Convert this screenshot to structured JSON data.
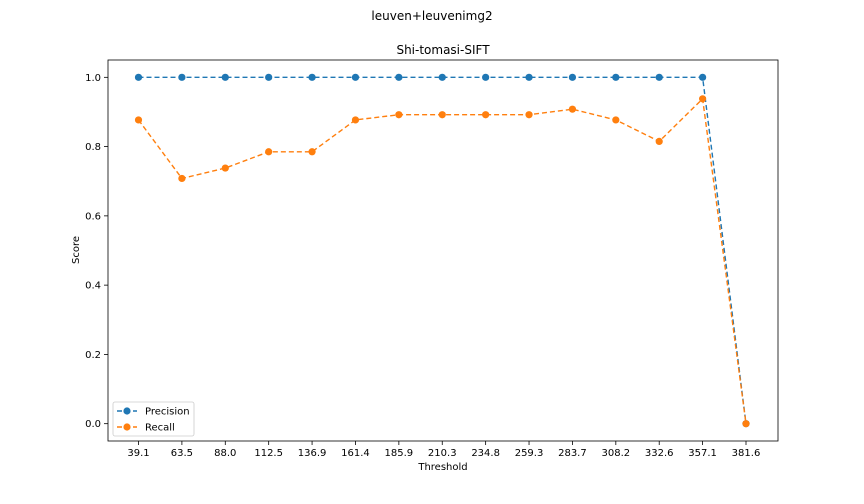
{
  "figure_title": "leuven+leuvenimg2",
  "chart_data": {
    "type": "line",
    "title": "Shi-tomasi-SIFT",
    "xlabel": "Threshold",
    "ylabel": "Score",
    "categories": [
      "39.1",
      "63.5",
      "88.0",
      "112.5",
      "136.9",
      "161.4",
      "185.9",
      "210.3",
      "234.8",
      "259.3",
      "283.7",
      "308.2",
      "332.6",
      "357.1",
      "381.6"
    ],
    "yticks": [
      "0.0",
      "0.2",
      "0.4",
      "0.6",
      "0.8",
      "1.0"
    ],
    "ylim": [
      -0.05,
      1.05
    ],
    "grid": false,
    "legend": "lower-left",
    "series": [
      {
        "name": "Precision",
        "color": "#1f77b4",
        "values": [
          1.0,
          1.0,
          1.0,
          1.0,
          1.0,
          1.0,
          1.0,
          1.0,
          1.0,
          1.0,
          1.0,
          1.0,
          1.0,
          1.0,
          0.0
        ]
      },
      {
        "name": "Recall",
        "color": "#ff7f0e",
        "values": [
          0.877,
          0.708,
          0.738,
          0.785,
          0.785,
          0.877,
          0.892,
          0.892,
          0.892,
          0.892,
          0.908,
          0.877,
          0.815,
          0.938,
          0.0
        ]
      }
    ]
  }
}
